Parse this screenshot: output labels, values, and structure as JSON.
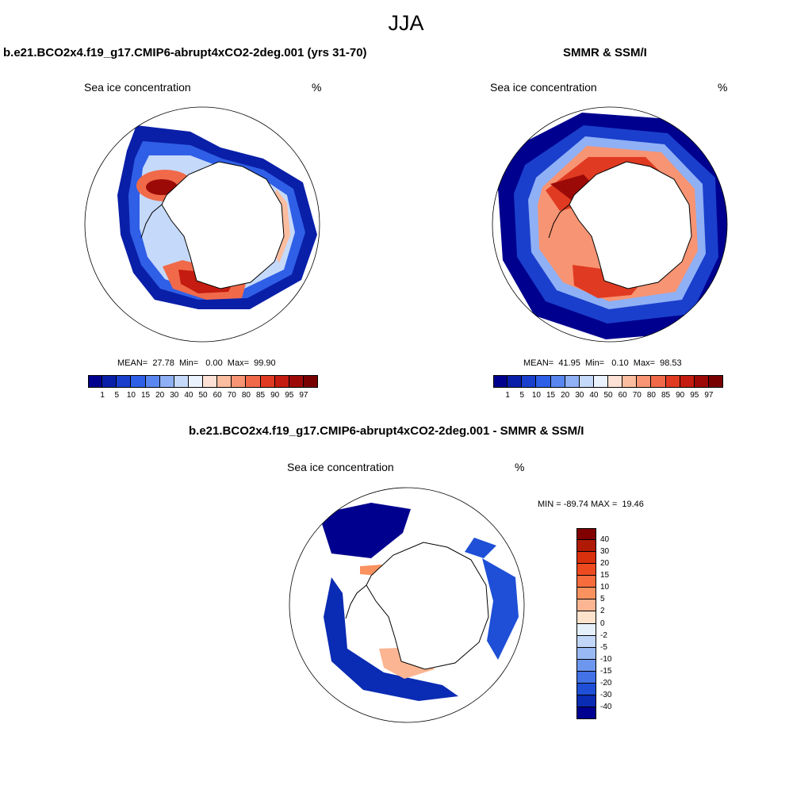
{
  "season": "JJA",
  "panels": [
    {
      "title": "b.e21.BCO2x4.f19_g17.CMIP6-abrupt4xCO2-2deg.001 (yrs 31-70)",
      "variable": "Sea ice concentration",
      "units": "%",
      "stats": "MEAN=  27.78  Min=   0.00  Max=  99.90"
    },
    {
      "title": "SMMR & SSM/I",
      "variable": "Sea ice concentration",
      "units": "%",
      "stats": "MEAN=  41.95  Min=   0.10  Max=  98.53"
    },
    {
      "title": "b.e21.BCO2x4.f19_g17.CMIP6-abrupt4xCO2-2deg.001 - SMMR & SSM/I",
      "variable": "Sea ice concentration",
      "units": "%",
      "stats": "MIN = -89.74 MAX =  19.46"
    }
  ],
  "colorbar_levels": [
    "1",
    "5",
    "10",
    "15",
    "20",
    "30",
    "40",
    "50",
    "60",
    "70",
    "80",
    "85",
    "90",
    "95",
    "97"
  ],
  "colorbar_colors": [
    "#00008e",
    "#0a1fa8",
    "#1a3fcc",
    "#2f5fe6",
    "#5a86f0",
    "#8fb0f5",
    "#c5d9fa",
    "#eaf2fd",
    "#fde1d4",
    "#fbbd9f",
    "#f79473",
    "#f06a4a",
    "#e03b22",
    "#c41c10",
    "#9c0a08",
    "#780000"
  ],
  "diff_levels": [
    "40",
    "30",
    "20",
    "15",
    "10",
    "5",
    "2",
    "0",
    "-2",
    "-5",
    "-10",
    "-15",
    "-20",
    "-30",
    "-40"
  ],
  "diff_colors": [
    "#800000",
    "#b01a04",
    "#d9300e",
    "#ee4a20",
    "#f66c3c",
    "#f9925f",
    "#fbb592",
    "#fde2cc",
    "#e6f0fb",
    "#c2d6f8",
    "#99b9f4",
    "#6d97ef",
    "#4272e6",
    "#1e4fd6",
    "#0a2bb3",
    "#000090"
  ],
  "colors": {
    "land": "#ffffff",
    "coast": "#000000"
  }
}
